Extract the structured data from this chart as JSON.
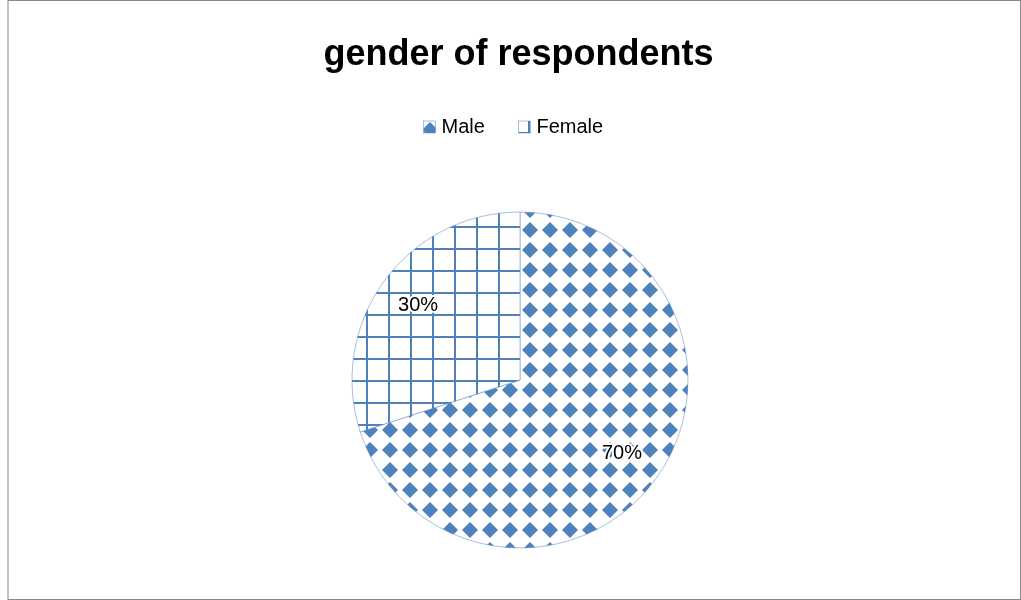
{
  "chart_data": {
    "type": "pie",
    "title": "gender of respondents",
    "categories": [
      "Male",
      "Female"
    ],
    "values": [
      70,
      30
    ],
    "colors": [
      "#4f81bd",
      "#4f81bd"
    ],
    "value_labels": [
      "70%",
      "30%"
    ],
    "legend": "top"
  }
}
